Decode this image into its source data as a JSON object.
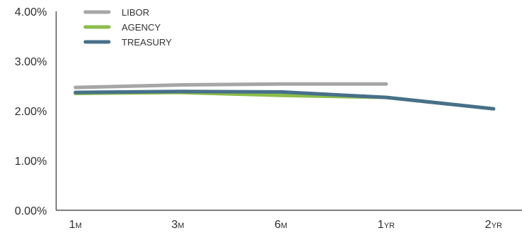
{
  "chart_data": {
    "type": "line",
    "title": "",
    "xlabel": "",
    "ylabel": "",
    "categories": [
      "1M",
      "3M",
      "6M",
      "1YR",
      "2YR"
    ],
    "x_tick_labels": [
      {
        "big": "1",
        "small": "M"
      },
      {
        "big": "3",
        "small": "M"
      },
      {
        "big": "6",
        "small": "M"
      },
      {
        "big": "1",
        "small": "YR"
      },
      {
        "big": "2",
        "small": "YR"
      }
    ],
    "y_ticks": [
      "0.00%",
      "1.00%",
      "2.00%",
      "3.00%",
      "4.00%"
    ],
    "ylim": [
      0,
      4
    ],
    "grid": false,
    "legend_position": "top-left",
    "series": [
      {
        "name": "LIBOR",
        "color": "#a6a6a6",
        "values": [
          2.47,
          2.52,
          2.54,
          2.54,
          null
        ]
      },
      {
        "name": "AGENCY",
        "color": "#8cbd4a",
        "values": [
          2.35,
          2.37,
          2.31,
          2.27,
          2.04
        ]
      },
      {
        "name": "TREASURY",
        "color": "#47708a",
        "values": [
          2.37,
          2.39,
          2.38,
          2.27,
          2.04
        ]
      }
    ]
  }
}
